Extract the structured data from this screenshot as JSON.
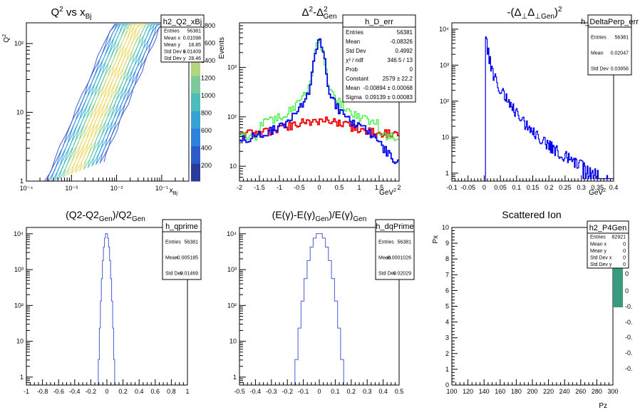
{
  "colors": {
    "blue": "#0000ee",
    "red": "#ee0000",
    "green": "#33ee33",
    "hist": "#4a5bd6",
    "teal": "#3a9a80",
    "axis": "#000000"
  },
  "palette_labels": [
    "200",
    "400",
    "600",
    "800",
    "1000",
    "1200",
    "1400",
    "1600",
    "1800"
  ],
  "chart_data": [
    {
      "type": "heatmap",
      "name": "h2_Q2_xBj",
      "title": "Q² vs x_Bj",
      "xlabel": "x_Bj",
      "ylabel": "Q²",
      "x_scale": "log",
      "y_scale": "log",
      "xlim": [
        0.0001,
        0.4
      ],
      "ylim": [
        1,
        200
      ],
      "x_ticks": [
        "10⁻⁴",
        "10⁻³",
        "10⁻²",
        "10⁻¹"
      ],
      "y_ticks": [
        "1",
        "10",
        "10²"
      ],
      "stats": [
        [
          "Entries",
          "56381"
        ],
        [
          "Mean x",
          "0.01098"
        ],
        [
          "Mean y",
          "18.85"
        ],
        [
          "Std Dev x",
          "0.01409"
        ],
        [
          "Std Dev y",
          "28.46"
        ]
      ]
    },
    {
      "type": "line",
      "name": "h_D_err",
      "title": "Δ²-Δ²_Gen",
      "xlabel": "GeV²",
      "ylabel": "Events",
      "y_scale": "log",
      "xlim": [
        -2,
        2
      ],
      "ylim": [
        5,
        8000
      ],
      "x_ticks": [
        "-2",
        "-1.5",
        "-1",
        "-0.5",
        "0",
        "0.5",
        "1",
        "1.5",
        "2"
      ],
      "y_ticks": [
        "10",
        "10²",
        "10³"
      ],
      "series": [],
      "stats": [
        [
          "Entries",
          "56381"
        ],
        [
          "Mean",
          "-0.08326"
        ],
        [
          "Std Dev",
          "0.4992"
        ],
        [
          "χ² / ndf",
          "346.5 / 13"
        ],
        [
          "Prob",
          "0"
        ],
        [
          "Constant",
          "2579 ± 22.2"
        ],
        [
          "Mean",
          "-0.00894 ± 0.00068"
        ],
        [
          "Sigma",
          "0.09139 ± 0.00083"
        ]
      ]
    },
    {
      "type": "line",
      "name": "h_DeltaPerp_err",
      "title": "-(Δ_⊥Δ_⊥Gen)²",
      "xlabel": "GeV²",
      "ylabel": "",
      "y_scale": "log",
      "xlim": [
        -0.1,
        0.4
      ],
      "ylim": [
        0.6,
        15000
      ],
      "x_ticks": [
        "-0.1",
        "-0.05",
        "0",
        "0.05",
        "0.1",
        "0.15",
        "0.2",
        "0.25",
        "0.3",
        "0.35",
        "0.4"
      ],
      "y_ticks": [
        "1",
        "10",
        "10²",
        "10³",
        "10⁴"
      ],
      "stats": [
        [
          "Entries",
          "56381"
        ],
        [
          "Mean",
          "0.02047"
        ],
        [
          "Std Dev",
          "0.03956"
        ]
      ]
    },
    {
      "type": "bar",
      "name": "h_qprime",
      "title": "(Q2-Q2_Gen)/Q2_Gen",
      "xlabel": "",
      "ylabel": "",
      "y_scale": "log",
      "xlim": [
        -1,
        1
      ],
      "ylim": [
        0.6,
        15000
      ],
      "x_ticks": [
        "-1",
        "-0.8",
        "-0.6",
        "-0.4",
        "-0.2",
        "0",
        "0.2",
        "0.4",
        "0.6",
        "0.8",
        "1"
      ],
      "y_ticks": [
        "1",
        "10",
        "10²",
        "10³",
        "10⁴"
      ],
      "stats": [
        [
          "Entries",
          "56381"
        ],
        [
          "Mean",
          "-0.005185"
        ],
        [
          "Std Dev",
          "0.01469"
        ]
      ]
    },
    {
      "type": "bar",
      "name": "h_dqPrime",
      "title": "(E(γ)-E(γ)_Gen)/E(γ)_Gen",
      "xlabel": "",
      "ylabel": "",
      "y_scale": "log",
      "xlim": [
        -0.5,
        0.5
      ],
      "ylim": [
        0.6,
        15000
      ],
      "x_ticks": [
        "-0.5",
        "-0.4",
        "-0.3",
        "-0.2",
        "-0.1",
        "0",
        "0.1",
        "0.2",
        "0.3",
        "0.4",
        "0.5"
      ],
      "y_ticks": [
        "1",
        "10",
        "10²",
        "10³",
        "10⁴"
      ],
      "stats": [
        [
          "Entries",
          "56381"
        ],
        [
          "Mean",
          "- 0.0001026"
        ],
        [
          "Std Dev",
          "0.02029"
        ]
      ]
    },
    {
      "type": "heatmap",
      "name": "h2_P4Gen",
      "title": "Scattered Ion",
      "xlabel": "Pz",
      "ylabel": "Px",
      "xlim": [
        100,
        300
      ],
      "ylim": [
        0,
        10
      ],
      "x_ticks": [
        "100",
        "120",
        "140",
        "160",
        "180",
        "200",
        "220",
        "240",
        "260",
        "280",
        "300"
      ],
      "y_ticks": [
        "0",
        "1",
        "2",
        "3",
        "4",
        "5",
        "6",
        "7",
        "8",
        "9",
        "10"
      ],
      "palette_labels": [
        "0",
        "0",
        "-0.",
        "-0.",
        "-0.",
        "-0.",
        "-0."
      ],
      "stats": [
        [
          "Entries",
          "82921"
        ],
        [
          "Mean x",
          "0"
        ],
        [
          "Mean y",
          "0"
        ],
        [
          "Std Dev x",
          "0"
        ],
        [
          "Std Dev y",
          "0"
        ]
      ]
    }
  ]
}
